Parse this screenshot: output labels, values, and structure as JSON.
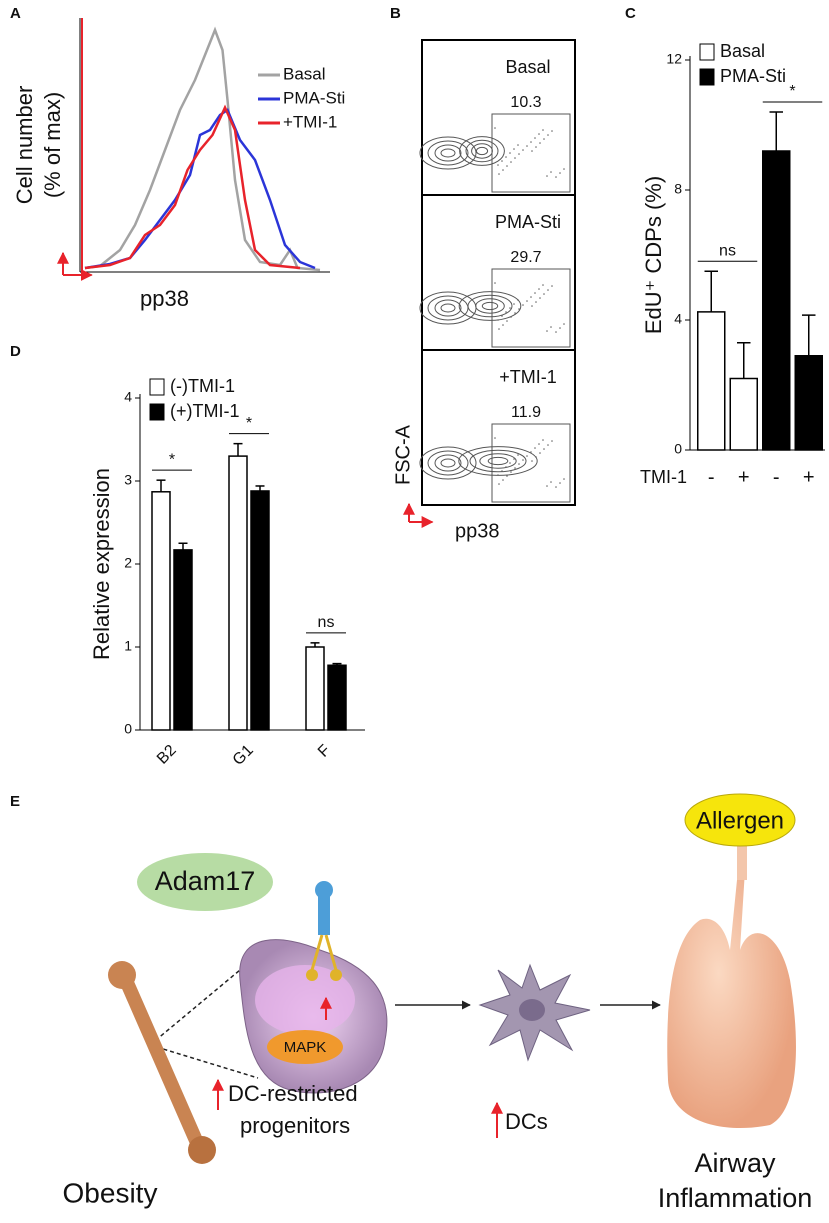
{
  "chart_data": [
    {
      "type": "line",
      "panel_label": "A",
      "y_label": "Cell number\n(% of max)",
      "x_label": "pp38",
      "xlim": [
        0,
        100
      ],
      "ylim": [
        0,
        100
      ],
      "series": [
        {
          "name": "Basal",
          "color": "#a3a3a3",
          "x": [
            2,
            8,
            16,
            22,
            28,
            34,
            40,
            46,
            50,
            54,
            57,
            59,
            62,
            66,
            72,
            80,
            84,
            87,
            96
          ],
          "values": [
            0.8,
            1.6,
            8,
            18,
            32,
            48,
            64,
            76,
            86,
            96,
            88,
            68,
            36,
            12,
            3.2,
            2,
            8,
            0.8,
            0
          ]
        },
        {
          "name": "PMA-Sti",
          "color": "#2b35d8",
          "x": [
            2,
            12,
            20,
            26,
            32,
            38,
            44,
            48,
            52,
            56,
            59,
            64,
            70,
            76,
            82,
            88,
            94
          ],
          "values": [
            0.8,
            2.4,
            4.8,
            12,
            20,
            28,
            38,
            54,
            56,
            62,
            64,
            52,
            44,
            28,
            10,
            3.2,
            0.8
          ]
        },
        {
          "name": "+TMI-1",
          "color": "#e8232b",
          "x": [
            2,
            12,
            20,
            26,
            32,
            38,
            43,
            48,
            53,
            58,
            62,
            66,
            70,
            76,
            88
          ],
          "values": [
            0.8,
            2,
            4.8,
            14,
            18,
            26,
            40,
            48,
            54,
            65,
            56,
            28,
            8,
            2,
            0.8
          ]
        }
      ]
    },
    {
      "type": "bar",
      "panel_label": "C",
      "y_label": "EdU⁺ CDPs (%)",
      "x_label": "TMI-1",
      "categories": [
        "-",
        "+",
        "-",
        "+"
      ],
      "ylim": [
        0,
        12
      ],
      "yticks": [
        0,
        4,
        8,
        12
      ],
      "series": [
        {
          "name": "Basal",
          "color": "#ffffff",
          "values": [
            4.25,
            2.2,
            null,
            null
          ],
          "errors": [
            1.25,
            1.1,
            null,
            null
          ]
        },
        {
          "name": "PMA-Sti",
          "color": "#000000",
          "values": [
            null,
            null,
            9.2,
            2.9
          ],
          "errors": [
            null,
            null,
            1.2,
            1.25
          ]
        }
      ],
      "annotations": [
        "ns",
        "*"
      ]
    },
    {
      "type": "grouped_bar",
      "panel_label": "D",
      "y_label": "Relative expression",
      "categories": [
        "B2",
        "G1",
        "F"
      ],
      "ylim": [
        0,
        4
      ],
      "yticks": [
        0,
        1,
        2,
        3,
        4
      ],
      "series": [
        {
          "name": "(-)TMI-1",
          "color": "#ffffff",
          "values": [
            2.87,
            3.3,
            1.0
          ],
          "errors": [
            0.14,
            0.15,
            0.05
          ]
        },
        {
          "name": "(+)TMI-1",
          "color": "#000000",
          "values": [
            2.17,
            2.88,
            0.78
          ],
          "errors": [
            0.08,
            0.06,
            0.02
          ]
        }
      ],
      "annotations": [
        "*",
        "*",
        "ns"
      ]
    }
  ],
  "flow_panel": {
    "label": "B",
    "x_label": "pp38",
    "y_label": "FSC-A",
    "plots": [
      {
        "name": "Basal",
        "gate_value": 10.3
      },
      {
        "name": "PMA-Sti",
        "gate_value": 29.7
      },
      {
        "name": "+TMI-1",
        "gate_value": 11.9
      }
    ]
  },
  "diagram": {
    "label": "E",
    "adam": "Adam17",
    "mapk": "MAPK",
    "progenitors": [
      "DC-restricted",
      "progenitors"
    ],
    "dcs": "DCs",
    "allergen": "Allergen",
    "outcome": [
      "Airway",
      "Inflammation"
    ],
    "obesity": "Obesity"
  }
}
